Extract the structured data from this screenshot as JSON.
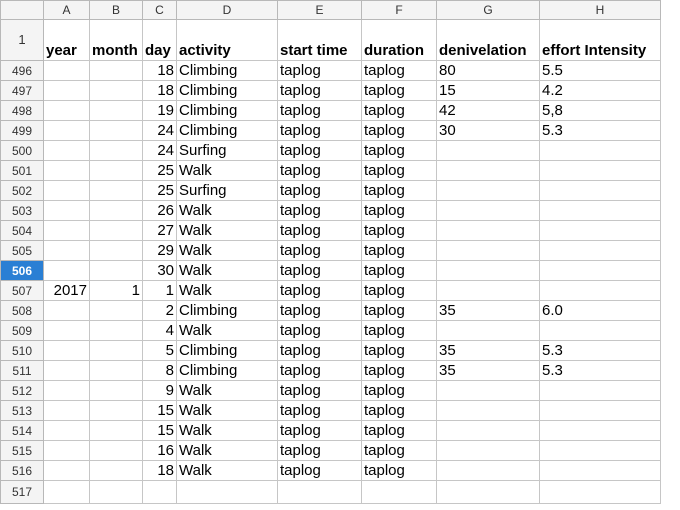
{
  "columns": [
    "A",
    "B",
    "C",
    "D",
    "E",
    "F",
    "G",
    "H"
  ],
  "header_row": {
    "number": "1",
    "cells": [
      "year",
      "month",
      "day",
      "activity",
      "start time",
      "duration",
      "denivelation",
      "effort Intensity"
    ]
  },
  "selected_row": "506",
  "rows": [
    {
      "n": "496",
      "a": "",
      "b": "",
      "c": "18",
      "d": "Climbing",
      "e": "taplog",
      "f": "taplog",
      "g": "80",
      "h": "5.5"
    },
    {
      "n": "497",
      "a": "",
      "b": "",
      "c": "18",
      "d": "Climbing",
      "e": "taplog",
      "f": "taplog",
      "g": "15",
      "h": "4.2"
    },
    {
      "n": "498",
      "a": "",
      "b": "",
      "c": "19",
      "d": "Climbing",
      "e": "taplog",
      "f": "taplog",
      "g": "42",
      "h": "5,8"
    },
    {
      "n": "499",
      "a": "",
      "b": "",
      "c": "24",
      "d": "Climbing",
      "e": "taplog",
      "f": "taplog",
      "g": "30",
      "h": "5.3"
    },
    {
      "n": "500",
      "a": "",
      "b": "",
      "c": "24",
      "d": "Surfing",
      "e": "taplog",
      "f": "taplog",
      "g": "",
      "h": ""
    },
    {
      "n": "501",
      "a": "",
      "b": "",
      "c": "25",
      "d": "Walk",
      "e": "taplog",
      "f": "taplog",
      "g": "",
      "h": ""
    },
    {
      "n": "502",
      "a": "",
      "b": "",
      "c": "25",
      "d": "Surfing",
      "e": "taplog",
      "f": "taplog",
      "g": "",
      "h": ""
    },
    {
      "n": "503",
      "a": "",
      "b": "",
      "c": "26",
      "d": "Walk",
      "e": "taplog",
      "f": "taplog",
      "g": "",
      "h": ""
    },
    {
      "n": "504",
      "a": "",
      "b": "",
      "c": "27",
      "d": "Walk",
      "e": "taplog",
      "f": "taplog",
      "g": "",
      "h": ""
    },
    {
      "n": "505",
      "a": "",
      "b": "",
      "c": "29",
      "d": "Walk",
      "e": "taplog",
      "f": "taplog",
      "g": "",
      "h": ""
    },
    {
      "n": "506",
      "a": "",
      "b": "",
      "c": "30",
      "d": "Walk",
      "e": "taplog",
      "f": "taplog",
      "g": "",
      "h": ""
    },
    {
      "n": "507",
      "a": "2017",
      "b": "1",
      "c": "1",
      "d": "Walk",
      "e": "taplog",
      "f": "taplog",
      "g": "",
      "h": ""
    },
    {
      "n": "508",
      "a": "",
      "b": "",
      "c": "2",
      "d": "Climbing",
      "e": "taplog",
      "f": "taplog",
      "g": "35",
      "h": "6.0"
    },
    {
      "n": "509",
      "a": "",
      "b": "",
      "c": "4",
      "d": "Walk",
      "e": "taplog",
      "f": "taplog",
      "g": "",
      "h": ""
    },
    {
      "n": "510",
      "a": "",
      "b": "",
      "c": "5",
      "d": "Climbing",
      "e": "taplog",
      "f": "taplog",
      "g": "35",
      "h": "5.3"
    },
    {
      "n": "511",
      "a": "",
      "b": "",
      "c": "8",
      "d": "Climbing",
      "e": "taplog",
      "f": "taplog",
      "g": "35",
      "h": "5.3"
    },
    {
      "n": "512",
      "a": "",
      "b": "",
      "c": "9",
      "d": "Walk",
      "e": "taplog",
      "f": "taplog",
      "g": "",
      "h": ""
    },
    {
      "n": "513",
      "a": "",
      "b": "",
      "c": "15",
      "d": "Walk",
      "e": "taplog",
      "f": "taplog",
      "g": "",
      "h": ""
    },
    {
      "n": "514",
      "a": "",
      "b": "",
      "c": "15",
      "d": "Walk",
      "e": "taplog",
      "f": "taplog",
      "g": "",
      "h": ""
    },
    {
      "n": "515",
      "a": "",
      "b": "",
      "c": "16",
      "d": "Walk",
      "e": "taplog",
      "f": "taplog",
      "g": "",
      "h": ""
    },
    {
      "n": "516",
      "a": "",
      "b": "",
      "c": "18",
      "d": "Walk",
      "e": "taplog",
      "f": "taplog",
      "g": "",
      "h": ""
    },
    {
      "n": "517",
      "a": "",
      "b": "",
      "c": "",
      "d": "",
      "e": "",
      "f": "",
      "g": "",
      "h": ""
    }
  ],
  "colors": {
    "header_bg": "#f4f4f4",
    "grid": "#c6c6c6",
    "selected_row_bg": "#2a7fd4",
    "selected_row_text": "#ffffff"
  }
}
